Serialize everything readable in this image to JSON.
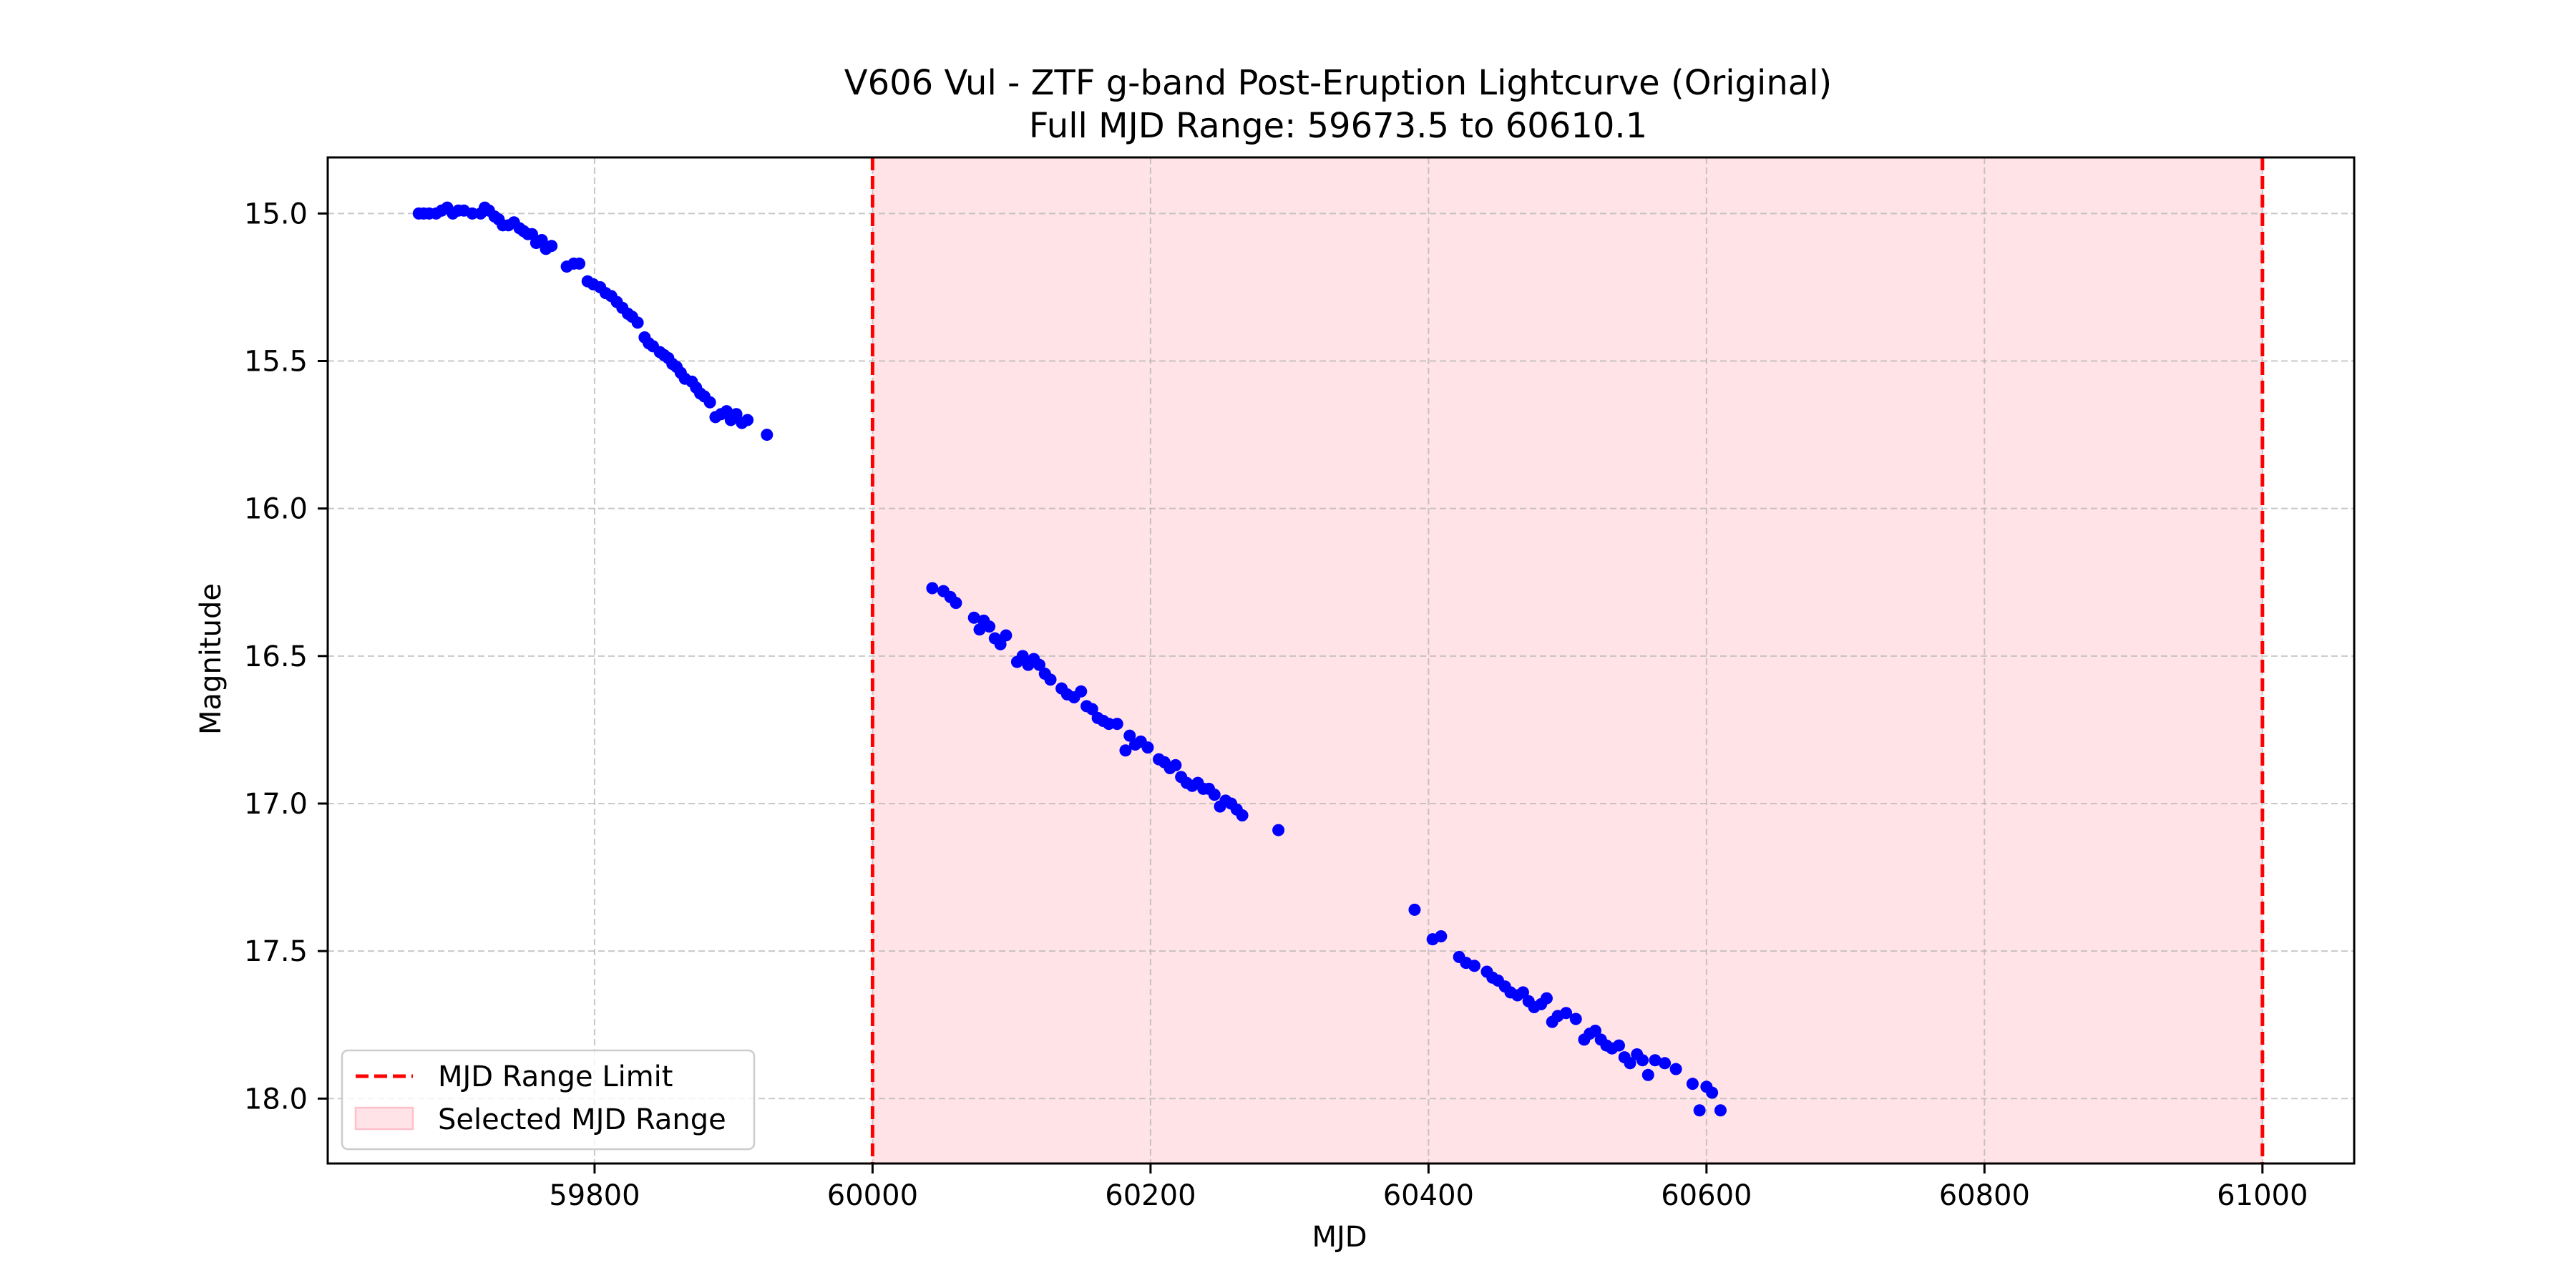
{
  "chart_data": {
    "type": "scatter",
    "title": "V606 Vul - ZTF g-band Post-Eruption Lightcurve (Original)",
    "subtitle": "Full MJD Range: 59673.5 to 60610.1",
    "xlabel": "MJD",
    "ylabel": "Magnitude",
    "xlim": [
      59608,
      61066
    ],
    "ylim": [
      18.22,
      14.81
    ],
    "y_inverted": true,
    "grid": true,
    "xticks": [
      59800,
      60000,
      60200,
      60400,
      60600,
      60800,
      61000
    ],
    "yticks": [
      15.0,
      15.5,
      16.0,
      16.5,
      17.0,
      17.5,
      18.0
    ],
    "xtick_labels": [
      "59800",
      "60000",
      "60200",
      "60400",
      "60600",
      "60800",
      "61000"
    ],
    "ytick_labels": [
      "15.0",
      "15.5",
      "16.0",
      "16.5",
      "17.0",
      "17.5",
      "18.0"
    ],
    "range_limits": [
      60000,
      61000
    ],
    "selected_range": [
      60000,
      61000
    ],
    "legend_position": "lower-left",
    "legend": [
      {
        "label": "MJD Range Limit",
        "style": "dashed-line",
        "color": "#ff0000"
      },
      {
        "label": "Selected MJD Range",
        "style": "patch",
        "color": "#ffc0cb"
      }
    ],
    "colors": {
      "points": "#0000ff",
      "limit": "#ff0000",
      "range_fill": "#ffe3e7"
    },
    "series": [
      {
        "color": "#0000ff",
        "points": [
          [
            59673.5,
            15.0
          ],
          [
            59677,
            15.0
          ],
          [
            59681,
            15.0
          ],
          [
            59686,
            15.0
          ],
          [
            59690,
            14.99
          ],
          [
            59694,
            14.98
          ],
          [
            59698,
            15.0
          ],
          [
            59702,
            14.99
          ],
          [
            59706,
            14.99
          ],
          [
            59712,
            15.0
          ],
          [
            59718,
            15.0
          ],
          [
            59721,
            14.98
          ],
          [
            59724,
            14.99
          ],
          [
            59728,
            15.01
          ],
          [
            59731,
            15.02
          ],
          [
            59734,
            15.04
          ],
          [
            59738,
            15.04
          ],
          [
            59742,
            15.03
          ],
          [
            59746,
            15.05
          ],
          [
            59749,
            15.06
          ],
          [
            59752,
            15.07
          ],
          [
            59755,
            15.07
          ],
          [
            59758,
            15.1
          ],
          [
            59762,
            15.09
          ],
          [
            59765,
            15.12
          ],
          [
            59769,
            15.11
          ],
          [
            59780,
            15.18
          ],
          [
            59785,
            15.17
          ],
          [
            59789,
            15.17
          ],
          [
            59795,
            15.23
          ],
          [
            59799,
            15.24
          ],
          [
            59804,
            15.25
          ],
          [
            59808,
            15.27
          ],
          [
            59812,
            15.28
          ],
          [
            59816,
            15.3
          ],
          [
            59820,
            15.32
          ],
          [
            59824,
            15.34
          ],
          [
            59827,
            15.35
          ],
          [
            59831,
            15.37
          ],
          [
            59836,
            15.42
          ],
          [
            59839,
            15.44
          ],
          [
            59842,
            15.45
          ],
          [
            59847,
            15.47
          ],
          [
            59850,
            15.48
          ],
          [
            59853,
            15.49
          ],
          [
            59856,
            15.51
          ],
          [
            59859,
            15.52
          ],
          [
            59862,
            15.54
          ],
          [
            59865,
            15.56
          ],
          [
            59870,
            15.57
          ],
          [
            59873,
            15.59
          ],
          [
            59876,
            15.61
          ],
          [
            59879,
            15.62
          ],
          [
            59883,
            15.64
          ],
          [
            59887,
            15.69
          ],
          [
            59891,
            15.68
          ],
          [
            59895,
            15.67
          ],
          [
            59898,
            15.7
          ],
          [
            59902,
            15.68
          ],
          [
            59906,
            15.71
          ],
          [
            59910,
            15.7
          ],
          [
            59924,
            15.75
          ],
          [
            60043,
            16.27
          ],
          [
            60051,
            16.28
          ],
          [
            60056,
            16.3
          ],
          [
            60060,
            16.32
          ],
          [
            60073,
            16.37
          ],
          [
            60077,
            16.41
          ],
          [
            60080,
            16.38
          ],
          [
            60084,
            16.4
          ],
          [
            60088,
            16.44
          ],
          [
            60092,
            16.46
          ],
          [
            60096,
            16.43
          ],
          [
            60104,
            16.52
          ],
          [
            60108,
            16.5
          ],
          [
            60112,
            16.53
          ],
          [
            60116,
            16.51
          ],
          [
            60120,
            16.53
          ],
          [
            60124,
            16.56
          ],
          [
            60128,
            16.58
          ],
          [
            60136,
            16.61
          ],
          [
            60140,
            16.63
          ],
          [
            60145,
            16.64
          ],
          [
            60150,
            16.62
          ],
          [
            60154,
            16.67
          ],
          [
            60158,
            16.68
          ],
          [
            60162,
            16.71
          ],
          [
            60166,
            16.72
          ],
          [
            60170,
            16.73
          ],
          [
            60176,
            16.73
          ],
          [
            60182,
            16.82
          ],
          [
            60185,
            16.77
          ],
          [
            60189,
            16.8
          ],
          [
            60193,
            16.79
          ],
          [
            60198,
            16.81
          ],
          [
            60206,
            16.85
          ],
          [
            60210,
            16.86
          ],
          [
            60214,
            16.88
          ],
          [
            60218,
            16.87
          ],
          [
            60222,
            16.91
          ],
          [
            60226,
            16.93
          ],
          [
            60230,
            16.94
          ],
          [
            60234,
            16.93
          ],
          [
            60238,
            16.95
          ],
          [
            60242,
            16.95
          ],
          [
            60246,
            16.97
          ],
          [
            60250,
            17.01
          ],
          [
            60254,
            16.99
          ],
          [
            60258,
            17.0
          ],
          [
            60262,
            17.02
          ],
          [
            60266,
            17.04
          ],
          [
            60292,
            17.09
          ],
          [
            60390,
            17.36
          ],
          [
            60403,
            17.46
          ],
          [
            60409,
            17.45
          ],
          [
            60422,
            17.52
          ],
          [
            60427,
            17.54
          ],
          [
            60433,
            17.55
          ],
          [
            60442,
            17.57
          ],
          [
            60446,
            17.59
          ],
          [
            60450,
            17.6
          ],
          [
            60455,
            17.62
          ],
          [
            60459,
            17.64
          ],
          [
            60464,
            17.65
          ],
          [
            60468,
            17.64
          ],
          [
            60472,
            17.67
          ],
          [
            60476,
            17.69
          ],
          [
            60481,
            17.68
          ],
          [
            60485,
            17.66
          ],
          [
            60489,
            17.74
          ],
          [
            60493,
            17.72
          ],
          [
            60499,
            17.71
          ],
          [
            60506,
            17.73
          ],
          [
            60512,
            17.8
          ],
          [
            60516,
            17.78
          ],
          [
            60520,
            17.77
          ],
          [
            60524,
            17.8
          ],
          [
            60528,
            17.82
          ],
          [
            60532,
            17.83
          ],
          [
            60537,
            17.82
          ],
          [
            60541,
            17.86
          ],
          [
            60545,
            17.88
          ],
          [
            60550,
            17.85
          ],
          [
            60554,
            17.87
          ],
          [
            60558,
            17.92
          ],
          [
            60563,
            17.87
          ],
          [
            60570,
            17.88
          ],
          [
            60578,
            17.9
          ],
          [
            60590,
            17.95
          ],
          [
            60595,
            18.04
          ],
          [
            60600,
            17.96
          ],
          [
            60604,
            17.98
          ],
          [
            60610.1,
            18.04
          ]
        ]
      }
    ]
  }
}
